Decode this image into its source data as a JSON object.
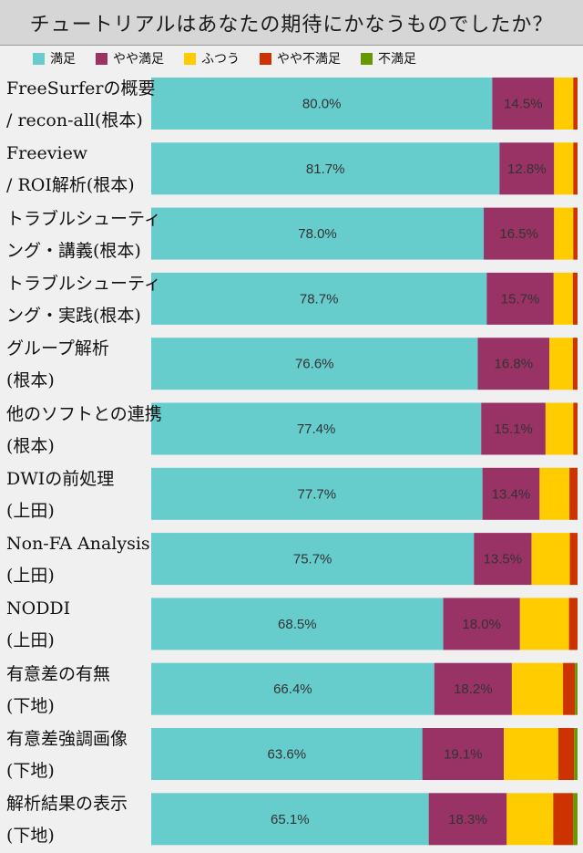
{
  "chart_data": {
    "type": "bar",
    "orientation": "horizontal",
    "stacked": true,
    "title": "チュートリアルはあなたの期待にかなうものでしたか？",
    "categories": [
      [
        "FreeSurferの概要",
        "/ recon-all(根本)"
      ],
      [
        "Freeview",
        "/ ROI解析(根本)"
      ],
      [
        "トラブルシューティ",
        "ング・講義(根本)"
      ],
      [
        "トラブルシューティ",
        "ング・実践(根本)"
      ],
      [
        "グループ解析",
        "(根本)"
      ],
      [
        "他のソフトとの連携",
        "(根本)"
      ],
      [
        "DWIの前処理",
        "(上田)"
      ],
      [
        "Non-FA Analysis",
        "(上田)"
      ],
      [
        "NODDI",
        "(上田)"
      ],
      [
        "有意差の有無",
        "(下地)"
      ],
      [
        "有意差強調画像",
        "(下地)"
      ],
      [
        "解析結果の表示",
        "(下地)"
      ]
    ],
    "series": [
      {
        "name": "満足",
        "color": "#66cccc",
        "values": [
          80.0,
          81.7,
          78.0,
          78.7,
          76.6,
          77.4,
          77.7,
          75.7,
          68.5,
          66.4,
          63.6,
          65.1
        ]
      },
      {
        "name": "やや満足",
        "color": "#993366",
        "values": [
          14.5,
          12.8,
          16.5,
          15.7,
          16.8,
          15.1,
          13.4,
          13.5,
          18.0,
          18.2,
          19.1,
          18.3
        ]
      },
      {
        "name": "ふつう",
        "color": "#ffcc00",
        "values": [
          4.5,
          4.5,
          4.5,
          4.5,
          5.5,
          6.5,
          7.0,
          9.0,
          11.5,
          12.0,
          12.8,
          10.9
        ]
      },
      {
        "name": "やや不満足",
        "color": "#cc3300",
        "values": [
          1.0,
          1.0,
          1.0,
          1.1,
          1.1,
          1.0,
          1.9,
          1.8,
          2.0,
          2.8,
          3.7,
          4.7
        ]
      },
      {
        "name": "不満足",
        "color": "#669900",
        "values": [
          0,
          0,
          0,
          0,
          0,
          0,
          0,
          0,
          0,
          0.6,
          0.8,
          1.0
        ]
      }
    ],
    "xlim": [
      0,
      100
    ],
    "value_labels_series": [
      "満足",
      "やや満足"
    ],
    "value_format": "%.1f%",
    "legend_position": "top"
  }
}
